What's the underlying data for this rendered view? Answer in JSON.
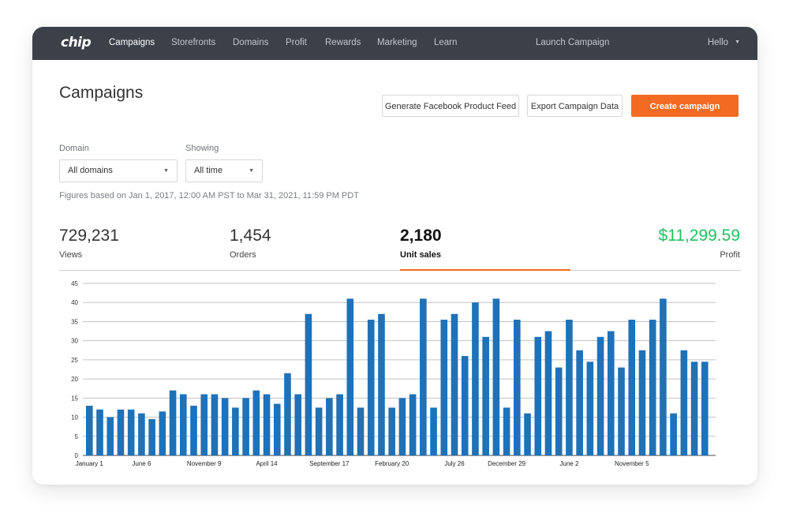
{
  "nav": {
    "logo": "chip",
    "links": [
      "Campaigns",
      "Storefronts",
      "Domains",
      "Profit",
      "Rewards",
      "Marketing",
      "Learn"
    ],
    "launch": "Launch Campaign",
    "user": "Hello"
  },
  "header": {
    "title": "Campaigns",
    "btn_feed": "Generate Facebook Product Feed",
    "btn_export": "Export Campaign Data",
    "btn_create": "Create campaign"
  },
  "filters": {
    "domain_label": "Domain",
    "domain_value": "All domains",
    "showing_label": "Showing",
    "showing_value": "All time",
    "figures_text": "Figures based on Jan 1, 2017, 12:00 AM PST to Mar 31, 2021, 11:59 PM PDT"
  },
  "stats": [
    {
      "value": "729,231",
      "label": "Views"
    },
    {
      "value": "1,454",
      "label": "Orders"
    },
    {
      "value": "2,180",
      "label": "Unit sales"
    },
    {
      "value": "$11,299.59",
      "label": "Profit"
    }
  ],
  "colors": {
    "nav_bg": "#3c4049",
    "accent": "#f36a22",
    "bar": "#1f71b8",
    "profit": "#21c160"
  },
  "chart_data": {
    "type": "bar",
    "ylim": [
      0,
      45
    ],
    "yticks": [
      0,
      5,
      10,
      15,
      20,
      25,
      30,
      35,
      40,
      45
    ],
    "grid": true,
    "x_tick_labels": [
      {
        "index": 0,
        "label": "January 1"
      },
      {
        "index": 5,
        "label": "June 6"
      },
      {
        "index": 11,
        "label": "November 9"
      },
      {
        "index": 17,
        "label": "April 14"
      },
      {
        "index": 23,
        "label": "September 17"
      },
      {
        "index": 29,
        "label": "February 20"
      },
      {
        "index": 35,
        "label": "July 26"
      },
      {
        "index": 40,
        "label": "December 29"
      },
      {
        "index": 46,
        "label": "June 2"
      },
      {
        "index": 52,
        "label": "November 5"
      }
    ],
    "values": [
      13,
      12,
      10,
      12,
      12,
      11,
      9.5,
      11.5,
      17,
      16,
      13,
      16,
      16,
      15,
      12.5,
      15,
      17,
      16,
      13.5,
      21.5,
      16,
      37,
      12.5,
      15,
      16,
      41,
      12.5,
      35.5,
      37,
      12.5,
      15,
      16,
      41,
      12.5,
      35.5,
      37,
      26,
      40,
      31,
      41,
      12.5,
      35.5,
      11,
      31,
      32.5,
      23,
      35.5,
      27.5,
      24.5,
      31,
      32.5,
      23,
      35.5,
      27.5,
      35.5,
      41,
      11,
      27.5,
      24.5,
      24.5
    ]
  }
}
